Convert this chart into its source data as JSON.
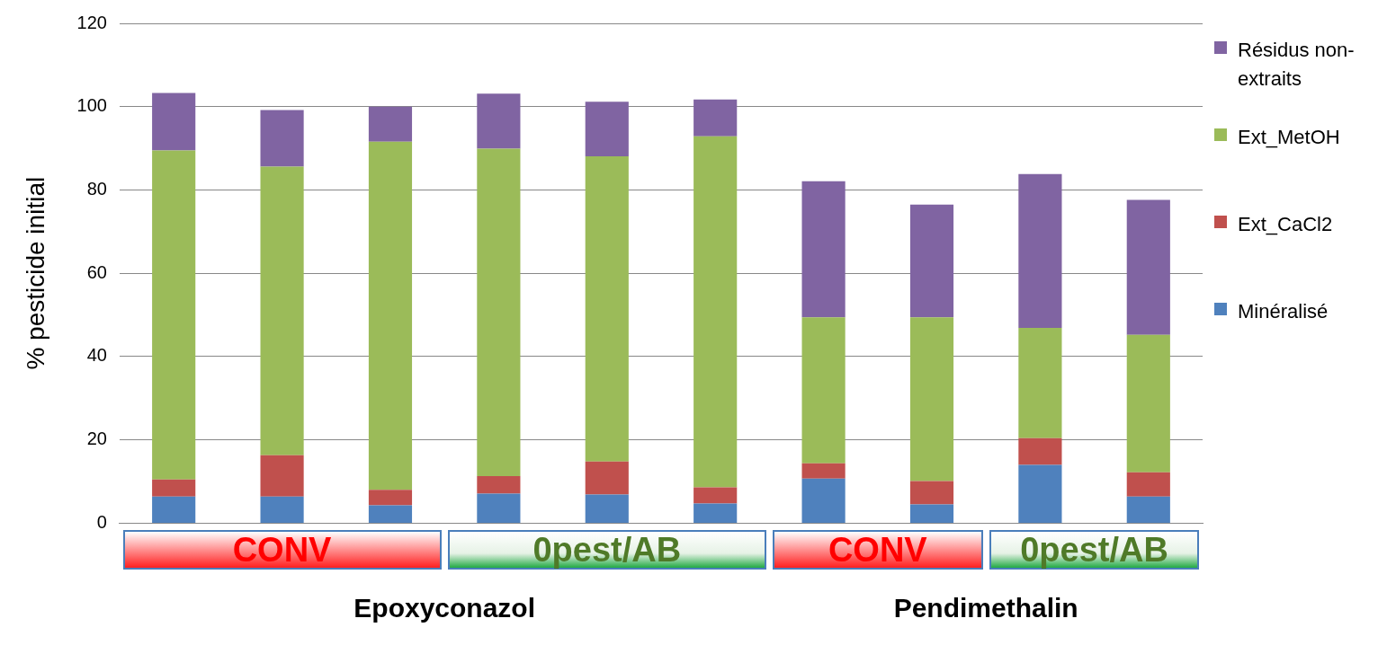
{
  "chart_data": {
    "type": "bar",
    "ylabel": "% pesticide initial",
    "categories": [
      null,
      null,
      null,
      null,
      null,
      null,
      null,
      null,
      null,
      null
    ],
    "stacked": true,
    "legend": "right",
    "grid": "y",
    "ylim": [
      0,
      120
    ],
    "yticks": [
      0,
      20,
      40,
      60,
      80,
      100,
      120
    ],
    "series": [
      {
        "name": "Minéralisé",
        "color": "#4f81bd",
        "values": [
          6.4,
          6.4,
          4.3,
          7.1,
          6.9,
          4.7,
          10.7,
          4.5,
          14.0,
          6.4
        ]
      },
      {
        "name": "Ext_CaCl2",
        "color": "#c0504d",
        "values": [
          4.1,
          9.9,
          3.7,
          4.2,
          7.9,
          3.9,
          3.7,
          5.6,
          6.4,
          5.8
        ]
      },
      {
        "name": "Ext_MetOH",
        "color": "#9bbb59",
        "values": [
          79.0,
          69.3,
          83.6,
          78.6,
          73.3,
          84.3,
          35.0,
          39.3,
          26.5,
          33.0
        ]
      },
      {
        "name": "Résidus non-extraits",
        "color": "#8064a2",
        "values": [
          13.8,
          13.6,
          8.4,
          13.2,
          13.1,
          8.8,
          32.7,
          27.1,
          36.9,
          32.4
        ]
      }
    ],
    "annotations": [
      "CONV",
      "0pest/AB",
      "CONV",
      "0pest/AB",
      "Epoxyconazol",
      "Pendimethalin"
    ]
  }
}
